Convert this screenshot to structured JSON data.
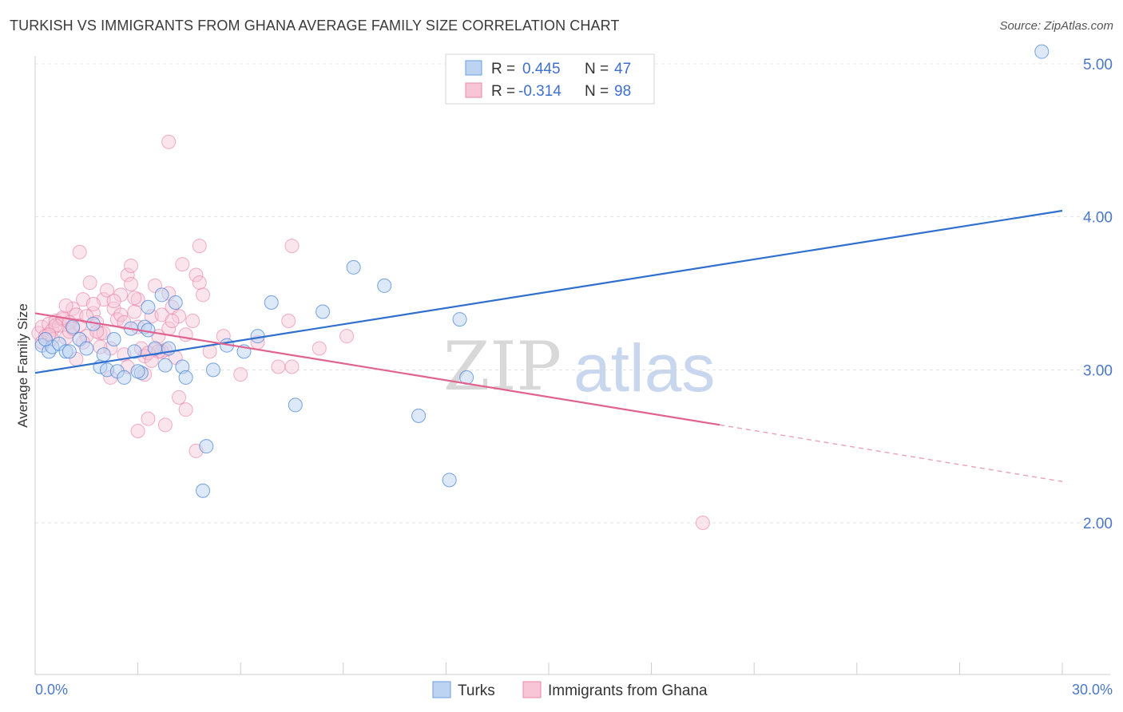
{
  "title": "TURKISH VS IMMIGRANTS FROM GHANA AVERAGE FAMILY SIZE CORRELATION CHART",
  "source": "Source: ZipAtlas.com",
  "watermark": {
    "zip": "ZIP",
    "atlas": "atlas"
  },
  "legend": {
    "r_label": "R =",
    "n_label": "N =",
    "rows": [
      {
        "r": "0.445",
        "n": "47"
      },
      {
        "r": "-0.314",
        "n": "98"
      }
    ]
  },
  "colors": {
    "turks": "#4a86d8",
    "turks_fill": "#bcd3f2",
    "ghana": "#e8709a",
    "ghana_fill": "#f7c5d6",
    "grid": "#e3e3e3",
    "tick": "#4a78c8"
  },
  "chart_data": {
    "type": "scatter",
    "title": "TURKISH VS IMMIGRANTS FROM GHANA AVERAGE FAMILY SIZE CORRELATION CHART",
    "xlabel": "",
    "ylabel": "Average Family Size",
    "xlim": [
      0,
      30
    ],
    "ylim": [
      1.0,
      5.1
    ],
    "x_tick_labels": [
      "0.0%",
      "30.0%"
    ],
    "y_ticks": [
      2.0,
      3.0,
      4.0,
      5.0
    ],
    "y_tick_labels": [
      "2.00",
      "3.00",
      "4.00",
      "5.00"
    ],
    "grid": true,
    "legend_position": "top-center",
    "series": [
      {
        "name": "Turks",
        "r": 0.445,
        "n": 47,
        "trend": {
          "x": [
            0,
            30
          ],
          "y": [
            2.98,
            4.04
          ]
        },
        "points": [
          [
            0.2,
            3.16
          ],
          [
            0.4,
            3.12
          ],
          [
            0.5,
            3.15
          ],
          [
            0.7,
            3.17
          ],
          [
            0.9,
            3.12
          ],
          [
            1.1,
            3.28
          ],
          [
            1.3,
            3.2
          ],
          [
            1.5,
            3.14
          ],
          [
            1.7,
            3.3
          ],
          [
            1.9,
            3.02
          ],
          [
            2.1,
            3.0
          ],
          [
            2.3,
            3.2
          ],
          [
            2.4,
            2.99
          ],
          [
            2.6,
            2.95
          ],
          [
            2.8,
            3.27
          ],
          [
            2.9,
            3.12
          ],
          [
            3.1,
            2.98
          ],
          [
            3.2,
            3.28
          ],
          [
            3.3,
            3.26
          ],
          [
            3.3,
            3.41
          ],
          [
            3.5,
            3.14
          ],
          [
            3.7,
            3.49
          ],
          [
            3.8,
            3.03
          ],
          [
            3.9,
            3.14
          ],
          [
            4.1,
            3.44
          ],
          [
            4.3,
            3.02
          ],
          [
            4.4,
            2.95
          ],
          [
            5.0,
            2.5
          ],
          [
            5.2,
            3.0
          ],
          [
            5.6,
            3.16
          ],
          [
            6.1,
            3.12
          ],
          [
            6.5,
            3.22
          ],
          [
            6.9,
            3.44
          ],
          [
            7.6,
            2.77
          ],
          [
            8.4,
            3.38
          ],
          [
            9.3,
            3.67
          ],
          [
            10.2,
            3.55
          ],
          [
            11.2,
            2.7
          ],
          [
            12.1,
            2.28
          ],
          [
            12.4,
            3.33
          ],
          [
            12.6,
            2.95
          ],
          [
            4.9,
            2.21
          ],
          [
            0.3,
            3.2
          ],
          [
            1.0,
            3.12
          ],
          [
            2.0,
            3.1
          ],
          [
            3.0,
            2.99
          ],
          [
            29.4,
            5.08
          ]
        ]
      },
      {
        "name": "Immigrants from Ghana",
        "r": -0.314,
        "n": 98,
        "trend": {
          "x": [
            0,
            20
          ],
          "y": [
            3.37,
            2.64
          ]
        },
        "trend_dashed": {
          "x": [
            20,
            30
          ],
          "y": [
            2.64,
            2.27
          ]
        },
        "points": [
          [
            0.1,
            3.24
          ],
          [
            0.2,
            3.28
          ],
          [
            0.3,
            3.22
          ],
          [
            0.4,
            3.3
          ],
          [
            0.5,
            3.26
          ],
          [
            0.6,
            3.32
          ],
          [
            0.7,
            3.29
          ],
          [
            0.8,
            3.33
          ],
          [
            0.9,
            3.21
          ],
          [
            1.0,
            3.25
          ],
          [
            1.1,
            3.4
          ],
          [
            1.2,
            3.36
          ],
          [
            1.3,
            3.29
          ],
          [
            1.4,
            3.46
          ],
          [
            1.5,
            3.22
          ],
          [
            1.6,
            3.57
          ],
          [
            1.7,
            3.37
          ],
          [
            1.8,
            3.31
          ],
          [
            1.9,
            3.24
          ],
          [
            2.0,
            3.46
          ],
          [
            2.1,
            3.52
          ],
          [
            2.2,
            3.14
          ],
          [
            2.3,
            3.4
          ],
          [
            2.4,
            3.33
          ],
          [
            2.5,
            3.49
          ],
          [
            2.6,
            3.1
          ],
          [
            2.7,
            3.62
          ],
          [
            2.8,
            3.56
          ],
          [
            2.9,
            3.38
          ],
          [
            3.0,
            3.28
          ],
          [
            3.1,
            3.14
          ],
          [
            3.2,
            3.09
          ],
          [
            3.3,
            2.68
          ],
          [
            3.4,
            3.35
          ],
          [
            3.5,
            3.55
          ],
          [
            3.6,
            3.22
          ],
          [
            3.7,
            3.36
          ],
          [
            3.8,
            3.13
          ],
          [
            3.9,
            3.5
          ],
          [
            4.0,
            3.41
          ],
          [
            4.1,
            3.08
          ],
          [
            4.2,
            2.82
          ],
          [
            4.3,
            3.69
          ],
          [
            4.4,
            3.23
          ],
          [
            4.6,
            3.32
          ],
          [
            4.7,
            3.62
          ],
          [
            4.8,
            3.57
          ],
          [
            4.9,
            3.49
          ],
          [
            5.1,
            3.12
          ],
          [
            5.5,
            3.22
          ],
          [
            6.0,
            2.97
          ],
          [
            6.5,
            3.18
          ],
          [
            7.1,
            3.02
          ],
          [
            7.4,
            3.32
          ],
          [
            7.5,
            3.02
          ],
          [
            8.3,
            3.14
          ],
          [
            9.1,
            3.22
          ],
          [
            1.3,
            3.77
          ],
          [
            2.8,
            3.68
          ],
          [
            3.9,
            4.49
          ],
          [
            4.8,
            3.81
          ],
          [
            7.5,
            3.81
          ],
          [
            3.0,
            2.6
          ],
          [
            3.8,
            2.64
          ],
          [
            4.4,
            2.74
          ],
          [
            4.7,
            2.47
          ],
          [
            19.5,
            2.0
          ],
          [
            0.2,
            3.18
          ],
          [
            0.5,
            3.2
          ],
          [
            0.8,
            3.34
          ],
          [
            1.0,
            3.31
          ],
          [
            1.2,
            3.07
          ],
          [
            1.4,
            3.18
          ],
          [
            1.7,
            3.43
          ],
          [
            1.9,
            3.15
          ],
          [
            2.2,
            2.95
          ],
          [
            2.5,
            3.36
          ],
          [
            2.7,
            3.02
          ],
          [
            3.0,
            3.46
          ],
          [
            3.2,
            2.97
          ],
          [
            3.5,
            3.13
          ],
          [
            3.7,
            3.12
          ],
          [
            3.9,
            3.27
          ],
          [
            4.2,
            3.35
          ],
          [
            2.6,
            3.31
          ],
          [
            2.0,
            3.24
          ],
          [
            1.5,
            3.35
          ],
          [
            0.9,
            3.42
          ],
          [
            3.3,
            3.11
          ],
          [
            0.6,
            3.29
          ],
          [
            1.1,
            3.27
          ],
          [
            2.3,
            3.45
          ],
          [
            2.9,
            3.47
          ],
          [
            3.6,
            3.12
          ],
          [
            4.0,
            3.32
          ],
          [
            0.4,
            3.23
          ],
          [
            1.8,
            3.25
          ],
          [
            3.4,
            3.06
          ]
        ]
      }
    ]
  },
  "bottom_legend": [
    {
      "label": "Turks"
    },
    {
      "label": "Immigrants from Ghana"
    }
  ]
}
